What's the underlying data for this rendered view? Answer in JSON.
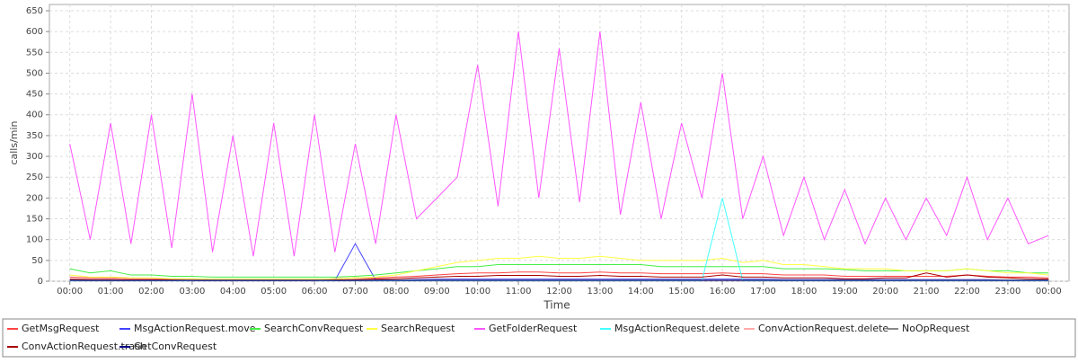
{
  "chart_data": {
    "type": "line",
    "x_label": "Time",
    "y_label": "calls/min",
    "x": [
      0,
      0.5,
      1,
      1.5,
      2,
      2.5,
      3,
      3.5,
      4,
      4.5,
      5,
      5.5,
      6,
      6.5,
      7,
      7.5,
      8,
      8.5,
      9,
      9.5,
      10,
      10.5,
      11,
      11.5,
      12,
      12.5,
      13,
      13.5,
      14,
      14.5,
      15,
      15.5,
      16,
      16.5,
      17,
      17.5,
      18,
      18.5,
      19,
      19.5,
      20,
      20.5,
      21,
      21.5,
      22,
      22.5,
      23,
      23.5,
      24
    ],
    "xlim": [
      -0.5,
      24.5
    ],
    "xticks": [
      {
        "value": 0,
        "label": "00:00"
      },
      {
        "value": 1,
        "label": "01:00"
      },
      {
        "value": 2,
        "label": "02:00"
      },
      {
        "value": 3,
        "label": "03:00"
      },
      {
        "value": 4,
        "label": "04:00"
      },
      {
        "value": 5,
        "label": "05:00"
      },
      {
        "value": 6,
        "label": "06:00"
      },
      {
        "value": 7,
        "label": "07:00"
      },
      {
        "value": 8,
        "label": "08:00"
      },
      {
        "value": 9,
        "label": "09:00"
      },
      {
        "value": 10,
        "label": "10:00"
      },
      {
        "value": 11,
        "label": "11:00"
      },
      {
        "value": 12,
        "label": "12:00"
      },
      {
        "value": 13,
        "label": "13:00"
      },
      {
        "value": 14,
        "label": "14:00"
      },
      {
        "value": 15,
        "label": "15:00"
      },
      {
        "value": 16,
        "label": "16:00"
      },
      {
        "value": 17,
        "label": "17:00"
      },
      {
        "value": 18,
        "label": "18:00"
      },
      {
        "value": 19,
        "label": "19:00"
      },
      {
        "value": 20,
        "label": "20:00"
      },
      {
        "value": 21,
        "label": "21:00"
      },
      {
        "value": 22,
        "label": "22:00"
      },
      {
        "value": 23,
        "label": "23:00"
      },
      {
        "value": 24,
        "label": "00:00"
      }
    ],
    "ylim": [
      0,
      665
    ],
    "yticks": [
      0,
      50,
      100,
      150,
      200,
      250,
      300,
      350,
      400,
      450,
      500,
      550,
      600,
      650
    ],
    "grid": true,
    "legend": "bottom",
    "series": [
      {
        "name": "GetMsgRequest",
        "color": "#ff4444",
        "values": [
          10,
          8,
          8,
          6,
          6,
          5,
          5,
          4,
          4,
          4,
          4,
          4,
          4,
          6,
          8,
          8,
          10,
          12,
          15,
          18,
          20,
          20,
          22,
          22,
          20,
          20,
          22,
          20,
          20,
          18,
          18,
          18,
          20,
          18,
          18,
          15,
          15,
          15,
          12,
          12,
          12,
          12,
          12,
          12,
          15,
          12,
          10,
          10,
          8
        ]
      },
      {
        "name": "MsgActionRequest.move",
        "color": "#4444ff",
        "values": [
          3,
          3,
          3,
          3,
          3,
          2,
          2,
          2,
          2,
          2,
          2,
          2,
          2,
          2,
          90,
          3,
          3,
          4,
          5,
          5,
          5,
          5,
          5,
          5,
          5,
          5,
          5,
          5,
          5,
          5,
          5,
          5,
          5,
          5,
          5,
          4,
          4,
          4,
          4,
          4,
          4,
          4,
          4,
          4,
          4,
          4,
          3,
          3,
          3
        ]
      },
      {
        "name": "SearchConvRequest",
        "color": "#44ee44",
        "values": [
          30,
          20,
          25,
          15,
          15,
          12,
          12,
          10,
          10,
          10,
          10,
          10,
          10,
          10,
          12,
          15,
          20,
          25,
          30,
          35,
          35,
          40,
          40,
          40,
          40,
          40,
          40,
          40,
          40,
          35,
          35,
          35,
          35,
          35,
          35,
          30,
          30,
          30,
          28,
          25,
          25,
          25,
          25,
          25,
          30,
          25,
          25,
          20,
          20
        ]
      },
      {
        "name": "SearchRequest",
        "color": "#ffff44",
        "values": [
          15,
          10,
          10,
          8,
          8,
          6,
          6,
          5,
          5,
          5,
          5,
          5,
          5,
          5,
          8,
          10,
          15,
          25,
          35,
          45,
          50,
          55,
          55,
          60,
          55,
          55,
          60,
          55,
          50,
          50,
          50,
          50,
          55,
          45,
          50,
          40,
          40,
          35,
          30,
          30,
          30,
          25,
          25,
          25,
          30,
          25,
          20,
          20,
          15
        ]
      },
      {
        "name": "GetFolderRequest",
        "color": "#ff55ff",
        "values": [
          330,
          100,
          380,
          90,
          400,
          80,
          450,
          70,
          350,
          60,
          380,
          60,
          400,
          70,
          330,
          90,
          400,
          150,
          200,
          250,
          520,
          180,
          600,
          200,
          560,
          190,
          600,
          160,
          430,
          150,
          380,
          200,
          500,
          150,
          300,
          110,
          250,
          100,
          220,
          90,
          200,
          100,
          200,
          110,
          250,
          100,
          200,
          90,
          110
        ]
      },
      {
        "name": "MsgActionRequest.delete",
        "color": "#44ffff",
        "values": [
          1,
          1,
          1,
          1,
          1,
          1,
          1,
          1,
          1,
          1,
          1,
          1,
          1,
          1,
          1,
          1,
          1,
          1,
          1,
          1,
          1,
          1,
          1,
          1,
          1,
          1,
          1,
          1,
          1,
          1,
          1,
          1,
          200,
          1,
          1,
          1,
          1,
          1,
          1,
          1,
          1,
          1,
          1,
          1,
          1,
          1,
          1,
          1,
          1
        ]
      },
      {
        "name": "ConvActionRequest.delete",
        "color": "#ffaaaa",
        "values": [
          2,
          2,
          2,
          2,
          2,
          2,
          2,
          2,
          2,
          2,
          2,
          2,
          2,
          2,
          2,
          2,
          2,
          2,
          2,
          2,
          2,
          2,
          2,
          2,
          2,
          2,
          2,
          2,
          2,
          2,
          2,
          2,
          2,
          2,
          2,
          2,
          2,
          2,
          2,
          2,
          2,
          2,
          2,
          2,
          2,
          2,
          2,
          2,
          2
        ]
      },
      {
        "name": "NoOpRequest",
        "color": "#888888",
        "values": [
          3,
          3,
          3,
          3,
          3,
          3,
          3,
          3,
          3,
          3,
          3,
          3,
          3,
          3,
          3,
          3,
          3,
          3,
          3,
          3,
          3,
          3,
          3,
          3,
          3,
          3,
          3,
          3,
          3,
          3,
          3,
          3,
          3,
          3,
          3,
          3,
          3,
          3,
          3,
          3,
          3,
          3,
          3,
          3,
          3,
          3,
          3,
          3,
          3
        ]
      },
      {
        "name": "ConvActionRequest.trash",
        "color": "#aa0000",
        "values": [
          5,
          4,
          4,
          3,
          3,
          3,
          2,
          2,
          2,
          2,
          2,
          2,
          2,
          3,
          4,
          5,
          6,
          8,
          10,
          12,
          12,
          14,
          14,
          14,
          12,
          12,
          14,
          12,
          12,
          10,
          10,
          10,
          15,
          10,
          10,
          8,
          8,
          8,
          6,
          6,
          8,
          8,
          20,
          10,
          15,
          10,
          8,
          6,
          5
        ]
      },
      {
        "name": "GetConvRequest",
        "color": "#000088",
        "values": [
          2,
          2,
          2,
          2,
          2,
          2,
          2,
          2,
          2,
          2,
          2,
          2,
          2,
          2,
          2,
          2,
          2,
          2,
          2,
          2,
          2,
          2,
          2,
          2,
          2,
          2,
          2,
          2,
          2,
          2,
          2,
          2,
          2,
          2,
          2,
          2,
          2,
          2,
          2,
          2,
          2,
          2,
          2,
          2,
          2,
          2,
          2,
          2,
          2
        ]
      }
    ]
  }
}
